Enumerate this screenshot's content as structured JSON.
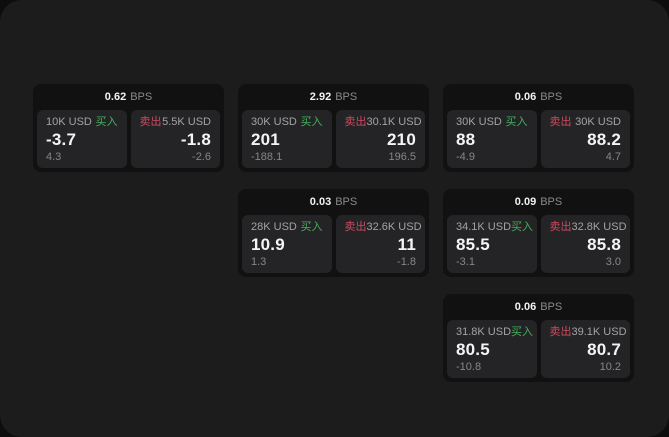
{
  "labels": {
    "bps_unit": "BPS",
    "buy": "买入",
    "sell": "卖出"
  },
  "colors": {
    "buy_green": "#43b05c",
    "sell_red": "#cc4a5e",
    "panel_background": "#1c1c1d",
    "card_background": "#111112",
    "tile_background": "#242426"
  },
  "cards": [
    {
      "bps": "0.62",
      "row": 1,
      "col": 1,
      "buy": {
        "amount": "10K USD",
        "value": "-3.7",
        "delta": "4.3"
      },
      "sell": {
        "amount": "5.5K USD",
        "value": "-1.8",
        "delta": "-2.6"
      }
    },
    {
      "bps": "2.92",
      "row": 1,
      "col": 2,
      "buy": {
        "amount": "30K USD",
        "value": "201",
        "delta": "-188.1"
      },
      "sell": {
        "amount": "30.1K USD",
        "value": "210",
        "delta": "196.5"
      }
    },
    {
      "bps": "0.06",
      "row": 1,
      "col": 3,
      "buy": {
        "amount": "30K USD",
        "value": "88",
        "delta": "-4.9"
      },
      "sell": {
        "amount": "30K USD",
        "value": "88.2",
        "delta": "4.7"
      }
    },
    {
      "bps": "0.03",
      "row": 2,
      "col": 2,
      "buy": {
        "amount": "28K USD",
        "value": "10.9",
        "delta": "1.3"
      },
      "sell": {
        "amount": "32.6K USD",
        "value": "11",
        "delta": "-1.8"
      }
    },
    {
      "bps": "0.09",
      "row": 2,
      "col": 3,
      "buy": {
        "amount": "34.1K USD",
        "value": "85.5",
        "delta": "-3.1"
      },
      "sell": {
        "amount": "32.8K USD",
        "value": "85.8",
        "delta": "3.0"
      }
    },
    {
      "bps": "0.06",
      "row": 3,
      "col": 3,
      "buy": {
        "amount": "31.8K USD",
        "value": "80.5",
        "delta": "-10.8"
      },
      "sell": {
        "amount": "39.1K USD",
        "value": "80.7",
        "delta": "10.2"
      }
    }
  ]
}
